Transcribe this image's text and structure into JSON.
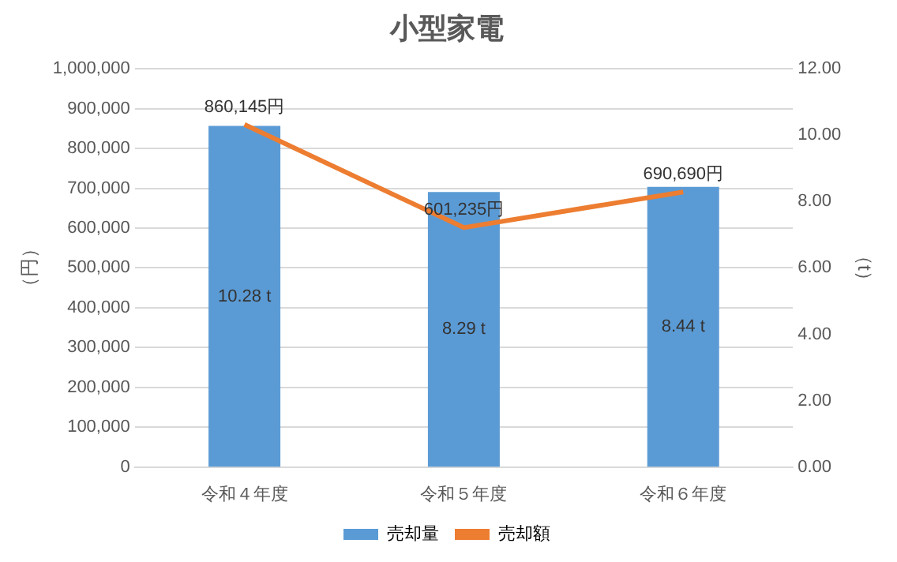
{
  "chart_data": {
    "type": "bar",
    "title": "小型家電",
    "ylabel": "（円）",
    "y2label": "（t）",
    "categories": [
      "令和４年度",
      "令和５年度",
      "令和６年度"
    ],
    "series": [
      {
        "name": "売却量",
        "axis": "y2",
        "color": "#5b9bd5",
        "values": [
          10.28,
          8.29,
          8.44
        ],
        "value_labels": [
          "10.28 t",
          "8.29 t",
          "8.44 t"
        ]
      },
      {
        "name": "売却額",
        "type": "line",
        "axis": "y",
        "color": "#ed7d31",
        "values": [
          860145,
          601235,
          690690
        ],
        "value_labels": [
          "860,145円",
          "601,235円",
          "690,690円"
        ]
      }
    ],
    "ylim": [
      0,
      1000000
    ],
    "yticks": [
      {
        "value": 0,
        "label": "0"
      },
      {
        "value": 100000,
        "label": "100,000"
      },
      {
        "value": 200000,
        "label": "200,000"
      },
      {
        "value": 300000,
        "label": "300,000"
      },
      {
        "value": 400000,
        "label": "400,000"
      },
      {
        "value": 500000,
        "label": "500,000"
      },
      {
        "value": 600000,
        "label": "600,000"
      },
      {
        "value": 700000,
        "label": "700,000"
      },
      {
        "value": 800000,
        "label": "800,000"
      },
      {
        "value": 900000,
        "label": "900,000"
      },
      {
        "value": 1000000,
        "label": "1,000,000"
      }
    ],
    "y2lim": [
      0,
      12
    ],
    "y2ticks": [
      {
        "value": 0,
        "label": "0.00"
      },
      {
        "value": 2,
        "label": "2.00"
      },
      {
        "value": 4,
        "label": "4.00"
      },
      {
        "value": 6,
        "label": "6.00"
      },
      {
        "value": 8,
        "label": "8.00"
      },
      {
        "value": 10,
        "label": "10.00"
      },
      {
        "value": 12,
        "label": "12.00"
      }
    ],
    "grid": "y",
    "legend": "bottom",
    "marker": "none",
    "line_style": "solid"
  }
}
